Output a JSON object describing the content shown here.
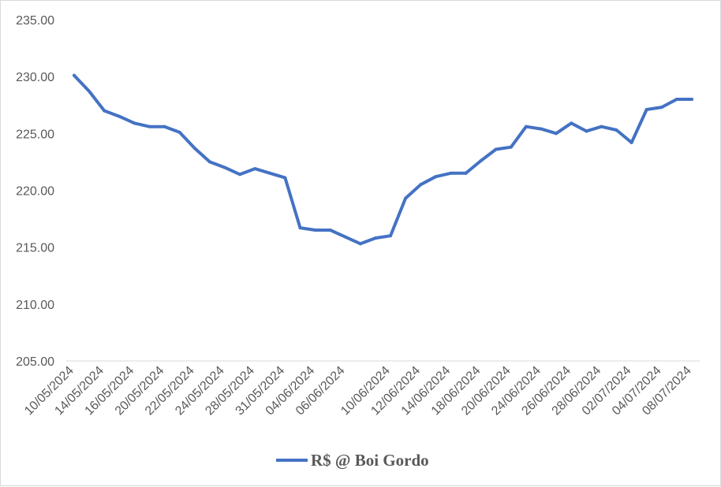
{
  "chart_data": {
    "type": "line",
    "title": "",
    "xlabel": "",
    "ylabel": "",
    "ylim": [
      205,
      235
    ],
    "yticks": [
      "205.00",
      "210.00",
      "215.00",
      "220.00",
      "225.00",
      "230.00",
      "235.00"
    ],
    "y_tick_values": [
      205,
      210,
      215,
      220,
      225,
      230,
      235
    ],
    "grid": false,
    "legend": {
      "position": "bottom",
      "entries": [
        "R$ @ Boi Gordo"
      ]
    },
    "x_tick_labels": [
      "10/05/2024",
      "14/05/2024",
      "16/05/2024",
      "20/05/2024",
      "22/05/2024",
      "24/05/2024",
      "28/05/2024",
      "31/05/2024",
      "04/06/2024",
      "06/06/2024",
      "10/06/2024",
      "12/06/2024",
      "14/06/2024",
      "18/06/2024",
      "20/06/2024",
      "24/06/2024",
      "26/06/2024",
      "28/06/2024",
      "02/07/2024",
      "04/07/2024",
      "08/07/2024"
    ],
    "series": [
      {
        "name": "R$ @ Boi Gordo",
        "color": "#4472C4",
        "values": [
          230.1,
          228.7,
          227.0,
          226.5,
          225.9,
          225.6,
          225.6,
          225.1,
          223.7,
          222.5,
          222.0,
          221.4,
          221.9,
          221.5,
          221.1,
          216.7,
          216.5,
          216.5,
          215.9,
          215.3,
          215.8,
          216.0,
          219.3,
          220.5,
          221.2,
          221.5,
          221.5,
          222.6,
          223.6,
          223.8,
          225.6,
          225.4,
          225.0,
          225.9,
          225.2,
          225.6,
          225.3,
          224.2,
          227.1,
          227.3,
          228.0,
          228.0
        ]
      }
    ]
  }
}
